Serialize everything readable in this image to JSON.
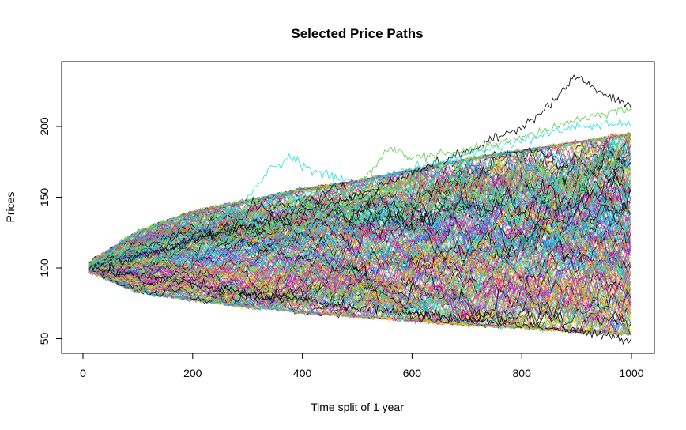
{
  "chart_data": {
    "type": "line",
    "title": "Selected Price Paths",
    "xlabel": "Time split of 1 year",
    "ylabel": "Prices",
    "xlim": [
      0,
      1000
    ],
    "ylim": [
      41,
      247
    ],
    "x_ticks": [
      0,
      200,
      400,
      600,
      800,
      1000
    ],
    "y_ticks": [
      50,
      100,
      150,
      200
    ],
    "grid": false,
    "legend": "none",
    "start_value": 100,
    "n_steps": 1000,
    "series_colors": [
      "#000000",
      "#DF536B",
      "#61D04F",
      "#2297E6",
      "#28E2E5",
      "#CD0BBC",
      "#F5C710",
      "#9E9E9E"
    ],
    "envelope": {
      "x": [
        10,
        100,
        200,
        300,
        400,
        500,
        600,
        700,
        800,
        900,
        1000
      ],
      "upper": [
        103,
        126,
        140,
        148,
        156,
        162,
        170,
        178,
        184,
        190,
        196
      ],
      "lower": [
        98,
        83,
        77,
        72,
        68,
        65,
        62,
        59,
        57,
        54,
        52
      ]
    },
    "highlighted_paths": [
      {
        "color": "#000000",
        "x": [
          10,
          100,
          200,
          300,
          400,
          500,
          600,
          700,
          800,
          850,
          900,
          950,
          1000
        ],
        "y": [
          100,
          108,
          120,
          130,
          140,
          150,
          168,
          182,
          200,
          215,
          236,
          222,
          214
        ]
      },
      {
        "color": "#28E2E5",
        "x": [
          10,
          100,
          200,
          300,
          340,
          380,
          420,
          500,
          600,
          700,
          800,
          900,
          1000
        ],
        "y": [
          100,
          110,
          125,
          148,
          170,
          179,
          168,
          160,
          170,
          180,
          190,
          200,
          202
        ]
      },
      {
        "color": "#61D04F",
        "x": [
          10,
          100,
          200,
          300,
          400,
          500,
          560,
          600,
          700,
          800,
          900,
          1000
        ],
        "y": [
          100,
          105,
          112,
          125,
          140,
          158,
          185,
          178,
          182,
          192,
          205,
          213
        ]
      },
      {
        "color": "#000000",
        "x": [
          10,
          100,
          200,
          300,
          400,
          500,
          600,
          700,
          800,
          900,
          1000
        ],
        "y": [
          100,
          95,
          88,
          82,
          77,
          72,
          68,
          64,
          60,
          55,
          49
        ]
      }
    ]
  }
}
